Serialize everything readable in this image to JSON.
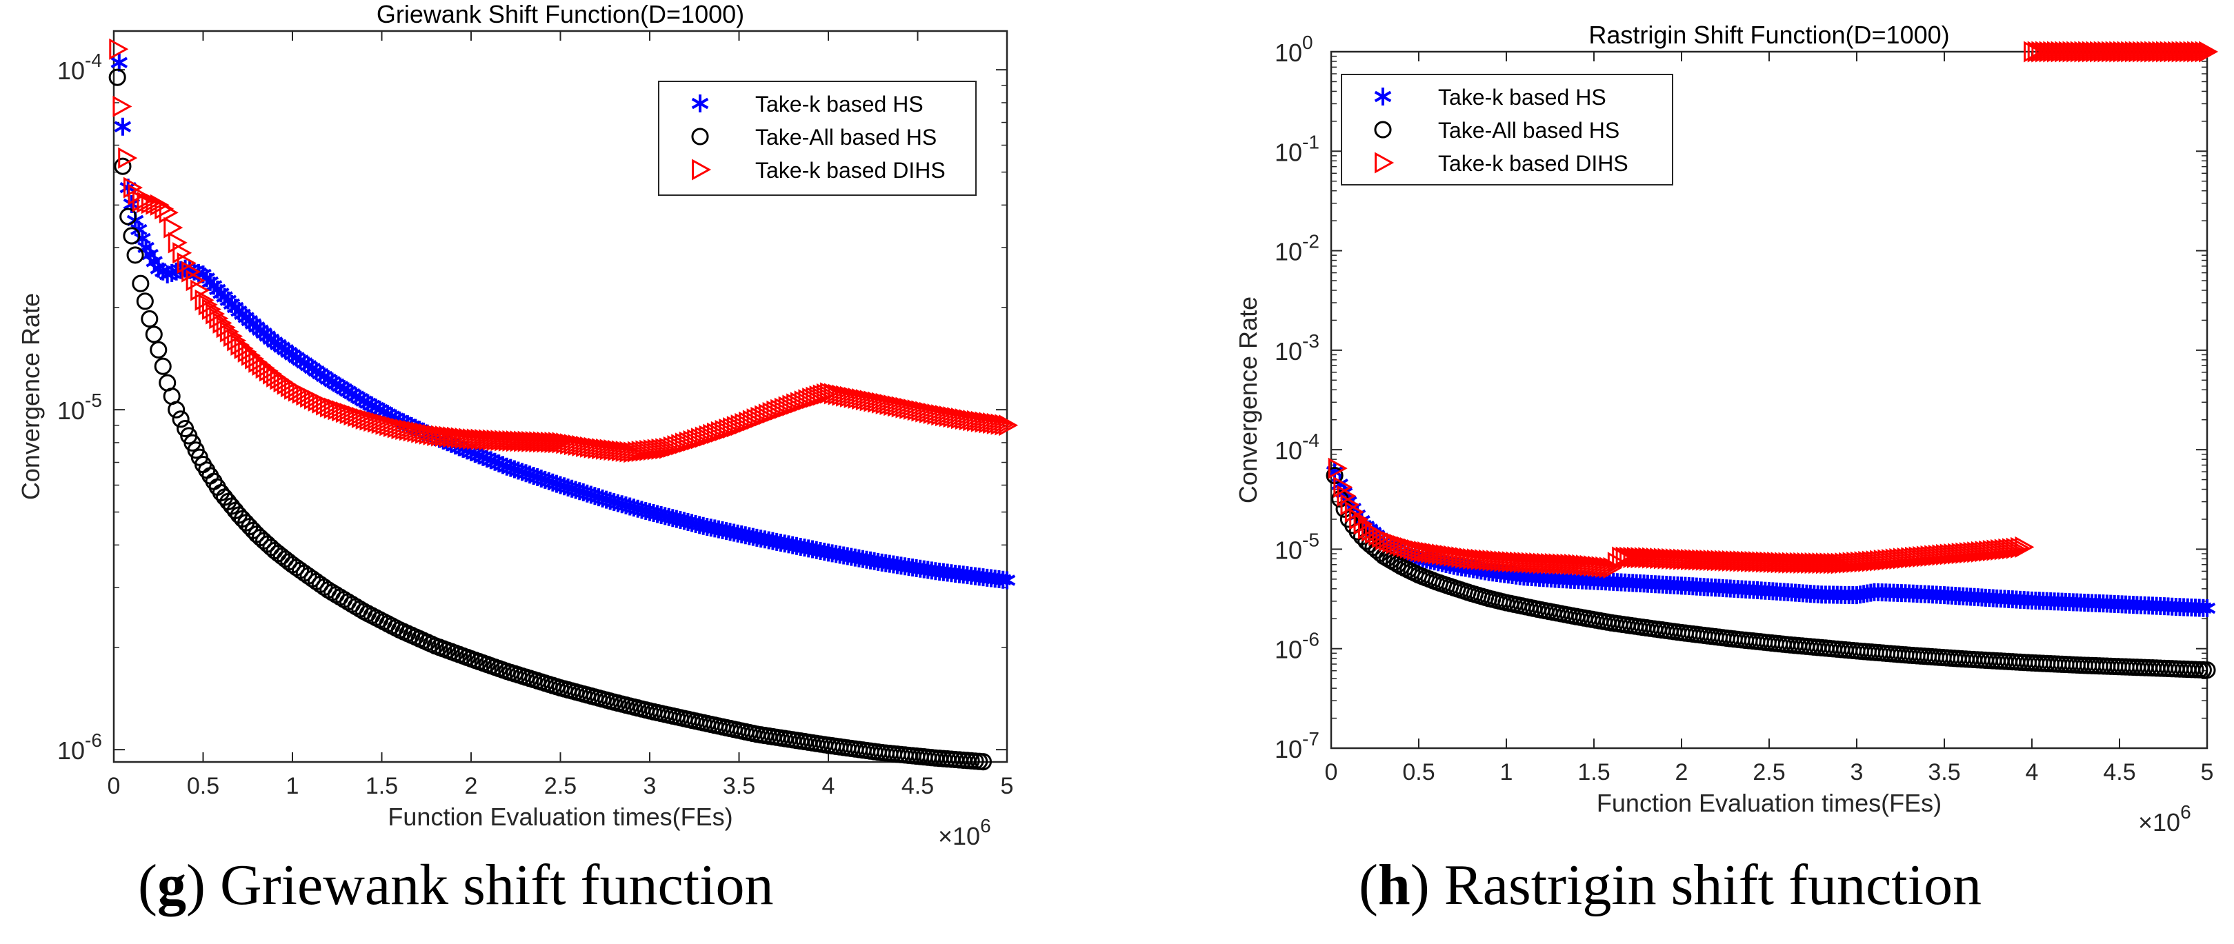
{
  "captions": [
    {
      "letter": "g",
      "text": "Griewank shift function"
    },
    {
      "letter": "h",
      "text": "Rastrigin shift function"
    }
  ],
  "chart_data": [
    {
      "type": "scatter",
      "title": "Griewank Shift Function(D=1000)",
      "xlabel": "Function Evaluation times(FEs)",
      "ylabel": "Convergence Rate",
      "x_multiplier_label": "×10",
      "x_multiplier_exp": "6",
      "x_scale": "linear",
      "y_scale": "log",
      "xlim": [
        0,
        5
      ],
      "ylim": [
        9.2e-07,
        0.00013
      ],
      "x_ticks": [
        0,
        0.5,
        1,
        1.5,
        2,
        2.5,
        3,
        3.5,
        4,
        4.5,
        5
      ],
      "x_tick_labels": [
        "0",
        "0.5",
        "1",
        "1.5",
        "2",
        "2.5",
        "3",
        "3.5",
        "4",
        "4.5",
        "5"
      ],
      "y_ticks": [
        1e-06,
        1e-05,
        0.0001
      ],
      "y_tick_labels": [
        [
          "10",
          "-6"
        ],
        [
          "10",
          "-5"
        ],
        [
          "10",
          "-4"
        ]
      ],
      "legend_position": "top-right",
      "series": [
        {
          "name": "Take-k based HS",
          "marker": "star",
          "color": "#0000ff",
          "x": [
            0.03,
            0.05,
            0.08,
            0.12,
            0.18,
            0.25,
            0.3,
            0.35,
            0.4,
            0.45,
            0.5,
            0.6,
            0.7,
            0.8,
            0.9,
            1.0,
            1.2,
            1.4,
            1.6,
            1.8,
            2.0,
            2.2,
            2.5,
            2.8,
            3.0,
            3.3,
            3.6,
            4.0,
            4.3,
            4.6,
            5.0
          ],
          "y": [
            0.000105,
            6.8e-05,
            4.5e-05,
            3.6e-05,
            3e-05,
            2.6e-05,
            2.5e-05,
            2.55e-05,
            2.6e-05,
            2.55e-05,
            2.5e-05,
            2.2e-05,
            1.95e-05,
            1.75e-05,
            1.58e-05,
            1.45e-05,
            1.23e-05,
            1.06e-05,
            9.3e-06,
            8.3e-06,
            7.5e-06,
            6.8e-06,
            6e-06,
            5.35e-06,
            5e-06,
            4.55e-06,
            4.2e-06,
            3.8e-06,
            3.55e-06,
            3.35e-06,
            3.15e-06
          ]
        },
        {
          "name": "Take-All based HS",
          "marker": "circle",
          "color": "#000000",
          "x": [
            0.02,
            0.05,
            0.08,
            0.12,
            0.15,
            0.2,
            0.25,
            0.3,
            0.35,
            0.4,
            0.5,
            0.6,
            0.7,
            0.8,
            0.9,
            1.0,
            1.2,
            1.4,
            1.6,
            1.8,
            2.0,
            2.2,
            2.5,
            2.8,
            3.0,
            3.3,
            3.6,
            4.0,
            4.3,
            4.6,
            5.0
          ],
          "y": [
            9.5e-05,
            5.2e-05,
            3.7e-05,
            2.85e-05,
            2.35e-05,
            1.85e-05,
            1.5e-05,
            1.2e-05,
            1e-05,
            8.8e-06,
            6.9e-06,
            5.7e-06,
            4.9e-06,
            4.3e-06,
            3.85e-06,
            3.5e-06,
            2.95e-06,
            2.55e-06,
            2.25e-06,
            2.02e-06,
            1.85e-06,
            1.7e-06,
            1.52e-06,
            1.38e-06,
            1.3e-06,
            1.2e-06,
            1.11e-06,
            1.03e-06,
            9.8e-07,
            9.45e-07,
            9.1e-07
          ]
        },
        {
          "name": "Take-k based DIHS",
          "marker": "triangle-right",
          "color": "#ff0000",
          "x": [
            0.02,
            0.04,
            0.07,
            0.1,
            0.15,
            0.2,
            0.25,
            0.3,
            0.35,
            0.4,
            0.45,
            0.5,
            0.6,
            0.7,
            0.8,
            0.9,
            1.0,
            1.2,
            1.4,
            1.6,
            1.8,
            2.0,
            2.2,
            2.5,
            2.7,
            2.9,
            3.1,
            3.3,
            3.5,
            3.7,
            3.9,
            4.0,
            4.2,
            4.4,
            4.6,
            4.8,
            5.0
          ],
          "y": [
            0.000115,
            7.8e-05,
            5.5e-05,
            4.5e-05,
            4.1e-05,
            4.05e-05,
            4e-05,
            3.8e-05,
            3.1e-05,
            2.7e-05,
            2.4e-05,
            2.1e-05,
            1.8e-05,
            1.55e-05,
            1.38e-05,
            1.25e-05,
            1.15e-05,
            1.02e-05,
            9.4e-06,
            8.8e-06,
            8.4e-06,
            8.2e-06,
            8.1e-06,
            8e-06,
            7.7e-06,
            7.5e-06,
            7.7e-06,
            8.3e-06,
            9e-06,
            9.9e-06,
            1.08e-05,
            1.12e-05,
            1.07e-05,
            1.02e-05,
            9.7e-06,
            9.3e-06,
            9e-06
          ]
        }
      ]
    },
    {
      "type": "scatter",
      "title": "Rastrigin Shift Function(D=1000)",
      "xlabel": "Function Evaluation times(FEs)",
      "ylabel": "Convergence Rate",
      "x_multiplier_label": "×10",
      "x_multiplier_exp": "6",
      "x_scale": "linear",
      "y_scale": "log",
      "xlim": [
        0,
        5
      ],
      "ylim": [
        1e-07,
        1
      ],
      "x_ticks": [
        0,
        0.5,
        1,
        1.5,
        2,
        2.5,
        3,
        3.5,
        4,
        4.5,
        5
      ],
      "x_tick_labels": [
        "0",
        "0.5",
        "1",
        "1.5",
        "2",
        "2.5",
        "3",
        "3.5",
        "4",
        "4.5",
        "5"
      ],
      "y_ticks": [
        1e-07,
        1e-06,
        1e-05,
        0.0001,
        0.001,
        0.01,
        0.1,
        1
      ],
      "y_tick_labels": [
        [
          "10",
          "-7"
        ],
        [
          "10",
          "-6"
        ],
        [
          "10",
          "-5"
        ],
        [
          "10",
          "-4"
        ],
        [
          "10",
          "-3"
        ],
        [
          "10",
          "-2"
        ],
        [
          "10",
          "-1"
        ],
        [
          "10",
          "0"
        ]
      ],
      "legend_position": "top-left",
      "series": [
        {
          "name": "Take-k based HS",
          "marker": "star",
          "color": "#0000ff",
          "x": [
            0.02,
            0.05,
            0.1,
            0.15,
            0.2,
            0.3,
            0.4,
            0.5,
            0.7,
            0.9,
            1.1,
            1.3,
            1.5,
            1.7,
            2.0,
            2.3,
            2.5,
            2.8,
            3.0,
            3.1,
            3.3,
            3.5,
            3.8,
            4.0,
            4.3,
            4.6,
            5.0
          ],
          "y": [
            6e-05,
            4.5e-05,
            3e-05,
            2.2e-05,
            1.7e-05,
            1.2e-05,
            9.5e-06,
            8.2e-06,
            6.8e-06,
            5.9e-06,
            5.3e-06,
            5e-06,
            4.8e-06,
            4.6e-06,
            4.3e-06,
            4e-06,
            3.8e-06,
            3.5e-06,
            3.45e-06,
            3.7e-06,
            3.6e-06,
            3.45e-06,
            3.2e-06,
            3.05e-06,
            2.9e-06,
            2.75e-06,
            2.55e-06
          ]
        },
        {
          "name": "Take-All based HS",
          "marker": "circle",
          "color": "#000000",
          "x": [
            0.02,
            0.05,
            0.1,
            0.15,
            0.2,
            0.3,
            0.4,
            0.5,
            0.6,
            0.7,
            0.8,
            0.9,
            1.0,
            1.2,
            1.4,
            1.6,
            1.8,
            2.0,
            2.3,
            2.6,
            3.0,
            3.3,
            3.6,
            4.0,
            4.3,
            4.6,
            5.0
          ],
          "y": [
            5.5e-05,
            3.2e-05,
            2e-05,
            1.5e-05,
            1.2e-05,
            8.5e-06,
            6.7e-06,
            5.5e-06,
            4.7e-06,
            4.1e-06,
            3.6e-06,
            3.2e-06,
            2.9e-06,
            2.45e-06,
            2.1e-06,
            1.82e-06,
            1.62e-06,
            1.45e-06,
            1.25e-06,
            1.1e-06,
            9.5e-07,
            8.6e-07,
            7.9e-07,
            7.2e-07,
            6.8e-07,
            6.5e-07,
            6.1e-07
          ]
        },
        {
          "name": "Take-k based DIHS",
          "marker": "triangle-right",
          "color": "#ff0000",
          "x": [
            0.03,
            0.06,
            0.1,
            0.15,
            0.2,
            0.3,
            0.4,
            0.5,
            0.6,
            0.8,
            1.0,
            1.2,
            1.4,
            1.6,
            1.65,
            1.8,
            2.0,
            2.3,
            2.6,
            2.9,
            3.1,
            3.3,
            3.5,
            3.7,
            3.9,
            3.95,
            4.0,
            4.2,
            4.4,
            4.6,
            4.8,
            5.0
          ],
          "y": [
            6.5e-05,
            4.2e-05,
            2.8e-05,
            2e-05,
            1.6e-05,
            1.25e-05,
            1.08e-05,
            9.6e-06,
            9e-06,
            8e-06,
            7.5e-06,
            7.2e-06,
            7e-06,
            6.5e-06,
            8.3e-06,
            8.2e-06,
            7.9e-06,
            7.6e-06,
            7.3e-06,
            7.2e-06,
            7.6e-06,
            8.2e-06,
            8.8e-06,
            9.4e-06,
            1.02e-05,
            1.05e-05,
            1.0,
            1.0,
            1.0,
            1.0,
            1.0,
            1.0
          ]
        }
      ]
    }
  ]
}
